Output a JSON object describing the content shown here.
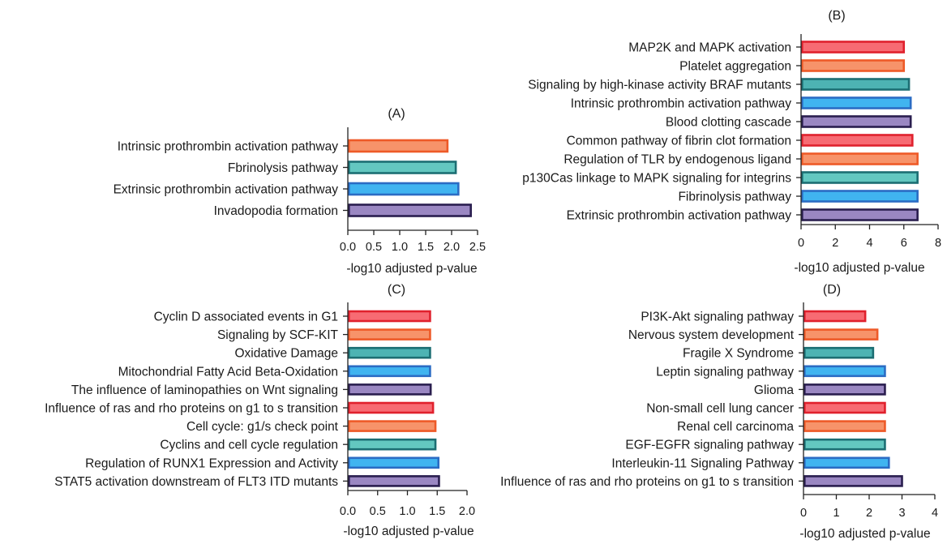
{
  "palette": {
    "red": {
      "fill": "#f76b73",
      "stroke": "#e0212d"
    },
    "orange": {
      "fill": "#f7936a",
      "stroke": "#ee5a28"
    },
    "teal": {
      "fill": "#4db3b3",
      "stroke": "#1c6e73"
    },
    "blue": {
      "fill": "#40b4f0",
      "stroke": "#2b6cc4"
    },
    "purple": {
      "fill": "#9a87c2",
      "stroke": "#2a1e4f"
    },
    "mint": {
      "fill": "#63c7c0",
      "stroke": "#1c6e73"
    }
  },
  "chart_data": [
    {
      "type": "bar",
      "orientation": "horizontal",
      "title": "(A)",
      "xlabel": "-log10 adjusted p-value",
      "xlim": [
        0,
        2.5
      ],
      "xticks": [
        "0.0",
        "0.5",
        "1.0",
        "1.5",
        "2.0",
        "2.5"
      ],
      "categories": [
        "Intrinsic prothrombin activation pathway",
        "Fbrinolysis pathway",
        "Extrinsic prothrombin activation pathway",
        "Invadopodia formation"
      ],
      "values": [
        1.92,
        2.08,
        2.13,
        2.37
      ],
      "colors": [
        "orange",
        "mint",
        "blue",
        "purple"
      ]
    },
    {
      "type": "bar",
      "orientation": "horizontal",
      "title": "(B)",
      "xlabel": "-log10 adjusted p-value",
      "xlim": [
        0,
        8
      ],
      "xticks": [
        "0",
        "2",
        "4",
        "6",
        "8"
      ],
      "categories": [
        "MAP2K and MAPK activation",
        "Platelet aggregation",
        "Signaling by high-kinase activity BRAF mutants",
        "Intrinsic prothrombin activation pathway",
        "Blood clotting cascade",
        "Common pathway of fibrin clot formation",
        "Regulation of TLR by endogenous ligand",
        "p130Cas linkage to MAPK signaling for integrins",
        "Fibrinolysis pathway",
        "Extrinsic prothrombin activation pathway"
      ],
      "values": [
        6.0,
        6.0,
        6.3,
        6.4,
        6.4,
        6.5,
        6.8,
        6.8,
        6.8,
        6.8
      ],
      "colors": [
        "red",
        "orange",
        "teal",
        "blue",
        "purple",
        "red",
        "orange",
        "mint",
        "blue",
        "purple"
      ]
    },
    {
      "type": "bar",
      "orientation": "horizontal",
      "title": "(C)",
      "xlabel": "-log10 adjusted p-value",
      "xlim": [
        0,
        2.0
      ],
      "xticks": [
        "0.0",
        "0.5",
        "1.0",
        "1.5",
        "2.0"
      ],
      "categories": [
        "Cyclin D associated events in G1",
        "Signaling by SCF-KIT",
        "Oxidative Damage",
        "Mitochondrial Fatty Acid Beta-Oxidation",
        "The influence of laminopathies on Wnt signaling",
        "Influence of ras and rho proteins on g1 to s transition",
        "Cell cycle: g1/s check point",
        "Cyclins and cell cycle regulation",
        "Regulation of RUNX1 Expression and Activity",
        "STAT5 activation downstream of FLT3 ITD mutants"
      ],
      "values": [
        1.38,
        1.38,
        1.38,
        1.38,
        1.39,
        1.43,
        1.47,
        1.47,
        1.52,
        1.53
      ],
      "colors": [
        "red",
        "orange",
        "teal",
        "blue",
        "purple",
        "red",
        "orange",
        "mint",
        "blue",
        "purple"
      ]
    },
    {
      "type": "bar",
      "orientation": "horizontal",
      "title": "(D)",
      "xlabel": "-log10 adjusted p-value",
      "xlim": [
        0,
        4
      ],
      "xticks": [
        "0",
        "1",
        "2",
        "3",
        "4"
      ],
      "categories": [
        "PI3K-Akt signaling pathway",
        "Nervous system development",
        "Fragile X Syndrome",
        "Leptin signaling pathway",
        "Glioma",
        "Non-small cell lung cancer",
        "Renal cell carcinoma",
        "EGF-EGFR signaling pathway",
        "Interleukin-11 Signaling Pathway",
        "Influence of ras and rho proteins on g1 to s transition"
      ],
      "values": [
        1.88,
        2.25,
        2.12,
        2.48,
        2.48,
        2.48,
        2.48,
        2.48,
        2.6,
        3.0
      ],
      "colors": [
        "red",
        "orange",
        "teal",
        "blue",
        "purple",
        "red",
        "orange",
        "mint",
        "blue",
        "purple"
      ]
    }
  ]
}
